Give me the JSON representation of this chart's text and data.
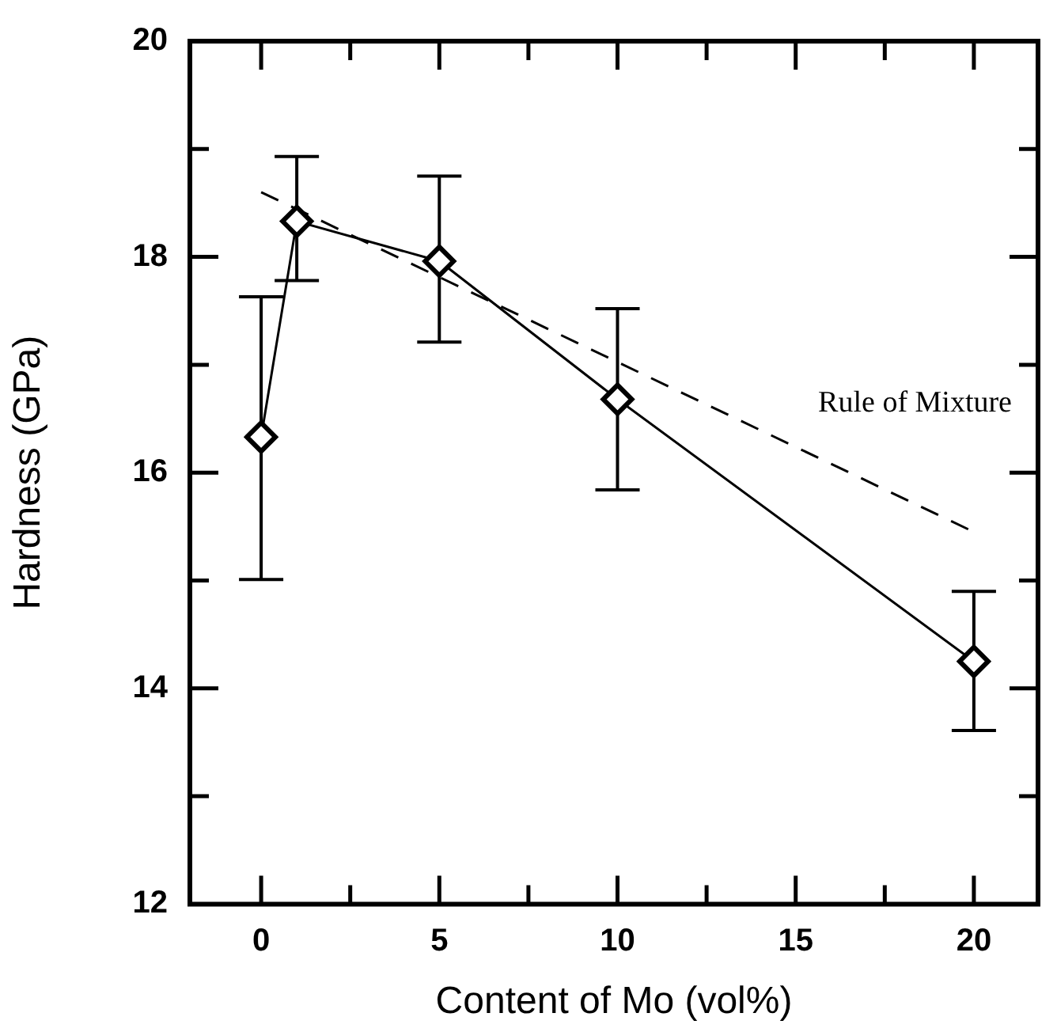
{
  "chart_data": {
    "type": "line",
    "xlabel": "Content of Mo (vol%)",
    "ylabel": "Hardness (GPa)",
    "x": [
      0,
      1,
      5,
      10,
      20
    ],
    "series": [
      {
        "color": "#000000",
        "marker": "diamond",
        "line_style": "solid",
        "values": [
          16.33,
          18.33,
          17.96,
          16.68,
          14.25
        ],
        "errors": [
          [
            15.01,
            17.63
          ],
          [
            17.78,
            18.93
          ],
          [
            17.21,
            18.75
          ],
          [
            15.84,
            17.52
          ],
          [
            13.61,
            14.9
          ]
        ]
      },
      {
        "color": "#000000",
        "marker": "none",
        "line_style": "dashed",
        "x": [
          0,
          20
        ],
        "values": [
          18.6,
          15.45
        ]
      }
    ],
    "annotations": [
      "Rule of Mixture"
    ],
    "xlim": [
      -2,
      21.8
    ],
    "xticks": [
      0,
      {
        "value": 2.5,
        "label": null
      },
      5,
      {
        "value": 7.5,
        "label": null
      },
      10,
      {
        "value": 12.5,
        "label": null
      },
      15,
      {
        "value": 17.5,
        "label": null
      },
      20
    ],
    "ylim": [
      12,
      20
    ],
    "yticks": [
      12,
      {
        "value": 13,
        "label": null
      },
      14,
      {
        "value": 15,
        "label": null
      },
      16,
      {
        "value": 17,
        "label": null
      },
      18,
      {
        "value": 19,
        "label": null
      },
      20
    ],
    "grid": false,
    "legend": false
  }
}
